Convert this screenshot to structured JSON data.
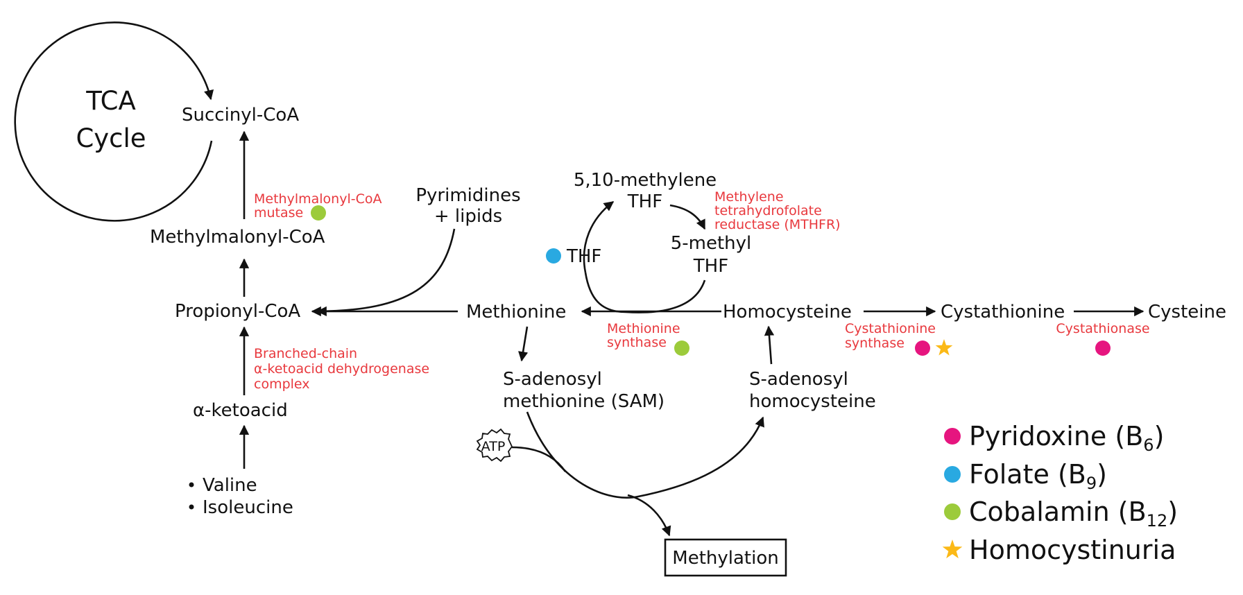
{
  "colors": {
    "pyridoxine": "#e6157f",
    "folate": "#29a9e1",
    "cobalamin": "#9ccb3b",
    "homocystinuria": "#fbb917",
    "enzyme_text": "#e8383d"
  },
  "nodes": {
    "tca_line1": "TCA",
    "tca_line2": "Cycle",
    "succinyl_coa": "Succinyl-CoA",
    "methylmalonyl_coa": "Methylmalonyl-CoA",
    "propionyl_coa": "Propionyl-CoA",
    "alpha_ketoacid": "α-ketoacid",
    "valine": "Valine",
    "isoleucine": "Isoleucine",
    "pyrimidines_line1": "Pyrimidines",
    "pyrimidines_line2": "+ lipids",
    "methylene_thf_line1": "5,10-methylene",
    "methylene_thf_line2": "THF",
    "thf": "THF",
    "methyl_thf_line1": "5-methyl",
    "methyl_thf_line2": "THF",
    "methionine": "Methionine",
    "homocysteine": "Homocysteine",
    "cystathionine": "Cystathionine",
    "cysteine": "Cysteine",
    "sam_line1": "S-adenosyl",
    "sam_line2": "methionine (SAM)",
    "sah_line1": "S-adenosyl",
    "sah_line2": "homocysteine",
    "atp": "ATP",
    "methylation": "Methylation"
  },
  "enzymes": {
    "mm_mutase_line1": "Methylmalonyl-CoA",
    "mm_mutase_line2": "mutase",
    "bckdh_line1": "Branched-chain",
    "bckdh_line2": "α-ketoacid dehydrogenase",
    "bckdh_line3": "complex",
    "mthfr_line1": "Methylene",
    "mthfr_line2": "tetrahydrofolate",
    "mthfr_line3": "reductase (MTHFR)",
    "met_synthase_line1": "Methionine",
    "met_synthase_line2": "synthase",
    "cbs_line1": "Cystathionine",
    "cbs_line2": "synthase",
    "cystathionase": "Cystathionase"
  },
  "legend": {
    "pyridoxine": "Pyridoxine (B",
    "pyridoxine_sub": "6",
    "pyridoxine_end": ")",
    "folate": "Folate (B",
    "folate_sub": "9",
    "folate_end": ")",
    "cobalamin": "Cobalamin (B",
    "cobalamin_sub": "12",
    "cobalamin_end": ")",
    "homocystinuria": "Homocystinuria"
  }
}
